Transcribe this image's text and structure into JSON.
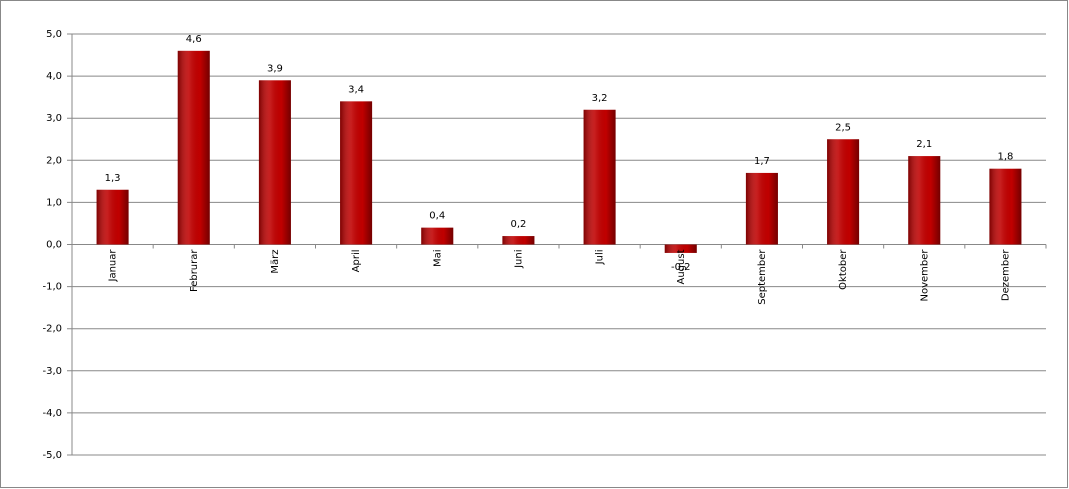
{
  "chart_data": {
    "type": "bar",
    "categories": [
      "Januar",
      "Februrar",
      "März",
      "April",
      "Mai",
      "Juni",
      "Juli",
      "August",
      "September",
      "Oktober",
      "November",
      "Dezember"
    ],
    "values": [
      1.3,
      4.6,
      3.9,
      3.4,
      0.4,
      0.2,
      3.2,
      -0.2,
      1.7,
      2.5,
      2.1,
      1.8
    ],
    "value_labels": [
      "1,3",
      "4,6",
      "3,9",
      "3,4",
      "0,4",
      "0,2",
      "3,2",
      "-0,2",
      "1,7",
      "2,5",
      "2,1",
      "1,8"
    ],
    "color": "#c00000",
    "ylim": [
      -5,
      5
    ],
    "yticks": [
      {
        "value": -5,
        "label": "-5,0"
      },
      {
        "value": -4,
        "label": "-4,0"
      },
      {
        "value": -3,
        "label": "-3,0"
      },
      {
        "value": -2,
        "label": "-2,0"
      },
      {
        "value": -1,
        "label": "-1,0"
      },
      {
        "value": 0,
        "label": "0,0"
      },
      {
        "value": 1,
        "label": "1,0"
      },
      {
        "value": 2,
        "label": "2,0"
      },
      {
        "value": 3,
        "label": "3,0"
      },
      {
        "value": 4,
        "label": "4,0"
      },
      {
        "value": 5,
        "label": "5,0"
      }
    ],
    "grid": true
  }
}
